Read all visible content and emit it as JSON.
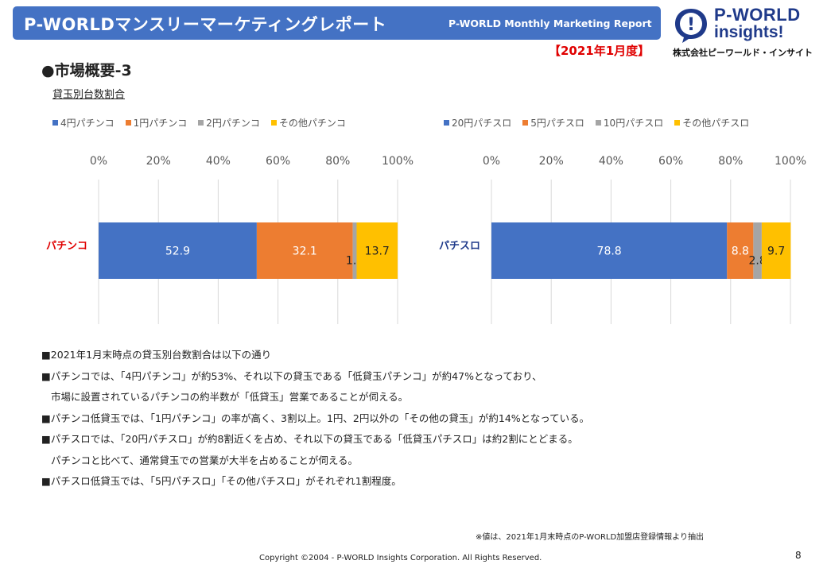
{
  "header": {
    "title_jp": "P-WORLDマンスリーマーケティングレポート",
    "title_en": "P-WORLD Monthly Marketing Report",
    "report_date": "【2021年1月度】"
  },
  "logo": {
    "line1": "P-WORLD",
    "line2": "insights!",
    "company": "株式会社ピーワールド・インサイト",
    "mark_glyph": "!"
  },
  "section_title": "●市場概要-3",
  "chart_subtitle": "貸玉別台数割合",
  "chart_data": [
    {
      "type": "bar",
      "orientation": "horizontal-stacked",
      "categories": [
        "パチンコ"
      ],
      "series": [
        {
          "name": "4円パチンコ",
          "values": [
            52.9
          ],
          "color": "#4472c4"
        },
        {
          "name": "1円パチンコ",
          "values": [
            32.1
          ],
          "color": "#ed7d31"
        },
        {
          "name": "2円パチンコ",
          "values": [
            1.3
          ],
          "color": "#a5a5a5"
        },
        {
          "name": "その他パチンコ",
          "values": [
            13.7
          ],
          "color": "#ffc000"
        }
      ],
      "xlim": [
        0,
        100
      ],
      "xticks": [
        "0%",
        "20%",
        "40%",
        "60%",
        "80%",
        "100%"
      ],
      "category_label_color": "#e00000",
      "legend": "top",
      "grid": true
    },
    {
      "type": "bar",
      "orientation": "horizontal-stacked",
      "categories": [
        "パチスロ"
      ],
      "series": [
        {
          "name": "20円パチスロ",
          "values": [
            78.8
          ],
          "color": "#4472c4"
        },
        {
          "name": "5円パチスロ",
          "values": [
            8.8
          ],
          "color": "#ed7d31"
        },
        {
          "name": "10円パチスロ",
          "values": [
            2.8
          ],
          "color": "#a5a5a5"
        },
        {
          "name": "その他パチスロ",
          "values": [
            9.7
          ],
          "color": "#ffc000"
        }
      ],
      "xlim": [
        0,
        100
      ],
      "xticks": [
        "0%",
        "20%",
        "40%",
        "60%",
        "80%",
        "100%"
      ],
      "category_label_color": "#1f3a8a",
      "legend": "top",
      "grid": true
    }
  ],
  "bullets": [
    {
      "text": "■2021年1月末時点の貸玉別台数割合は以下の通り",
      "indent": false
    },
    {
      "text": "■パチンコでは、「4円パチンコ」が約53%、それ以下の貸玉である「低貸玉パチンコ」が約47%となっており、",
      "indent": false
    },
    {
      "text": "市場に設置されているパチンコの約半数が「低貸玉」営業であることが伺える。",
      "indent": true
    },
    {
      "text": "■パチンコ低貸玉では、「1円パチンコ」の率が高く、3割以上。1円、2円以外の「その他の貸玉」が約14%となっている。",
      "indent": false
    },
    {
      "text": "■パチスロでは、「20円パチスロ」が約8割近くを占め、それ以下の貸玉である「低貸玉パチスロ」は約2割にとどまる。",
      "indent": false
    },
    {
      "text": "パチンコと比べて、通常貸玉での営業が大半を占めることが伺える。",
      "indent": true
    },
    {
      "text": "■パチスロ低貸玉では、「5円パチスロ」「その他パチスロ」がそれぞれ1割程度。",
      "indent": false
    }
  ],
  "note": "※値は、2021年1月末時点のP-WORLD加盟店登録情報より抽出",
  "copyright": "Copyright ©2004 -  P-WORLD Insights Corporation. All Rights Reserved.",
  "page_number": "8"
}
